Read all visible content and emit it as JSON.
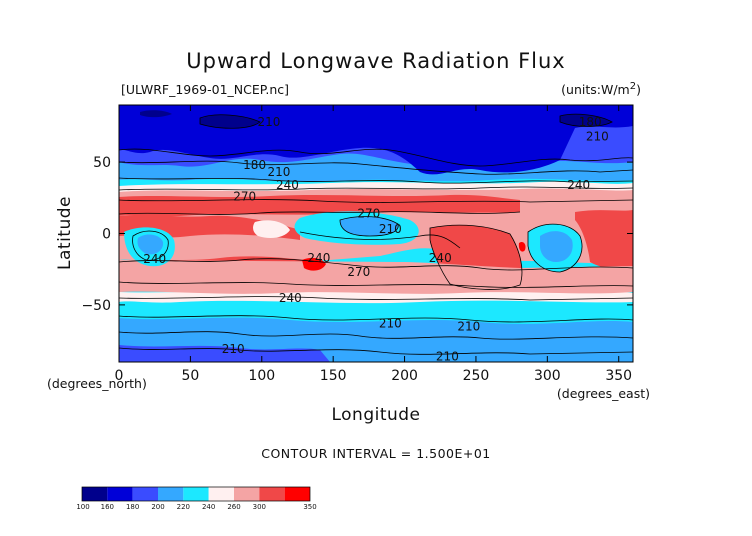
{
  "header": {
    "title": "Upward Longwave Radiation Flux",
    "source": "[ULWRF_1969-01_NCEP.nc]",
    "units": "(units:W/m^2)"
  },
  "chart_data": {
    "type": "heatmap",
    "title": "Upward Longwave Radiation Flux",
    "xlabel": "Longitude",
    "ylabel": "Latitude",
    "x_unit_label": "(degrees_east)",
    "y_unit_label": "(degrees_north)",
    "xlim": [
      0,
      360
    ],
    "ylim": [
      -90,
      90
    ],
    "x_ticks": [
      0,
      50,
      100,
      150,
      200,
      250,
      300,
      350
    ],
    "x_tick_labels": [
      "0",
      "50",
      "100",
      "150",
      "200",
      "250",
      "300",
      "350"
    ],
    "y_ticks": [
      50,
      0,
      -50
    ],
    "y_tick_labels": [
      "50",
      "0",
      "−50"
    ],
    "contour_interval_text": "CONTOUR INTERVAL = 1.500E+01",
    "contour_interval": 15,
    "contour_labels": [
      {
        "text": "210",
        "lon": 105,
        "lat": 78
      },
      {
        "text": "180",
        "lon": 330,
        "lat": 78
      },
      {
        "text": "210",
        "lon": 335,
        "lat": 68
      },
      {
        "text": "180",
        "lon": 95,
        "lat": 48
      },
      {
        "text": "210",
        "lon": 112,
        "lat": 43
      },
      {
        "text": "240",
        "lon": 118,
        "lat": 34
      },
      {
        "text": "240",
        "lon": 322,
        "lat": 34
      },
      {
        "text": "270",
        "lon": 88,
        "lat": 26
      },
      {
        "text": "270",
        "lon": 175,
        "lat": 14
      },
      {
        "text": "210",
        "lon": 190,
        "lat": 3
      },
      {
        "text": "240",
        "lon": 25,
        "lat": -18
      },
      {
        "text": "240",
        "lon": 140,
        "lat": -17
      },
      {
        "text": "270",
        "lon": 168,
        "lat": -27
      },
      {
        "text": "240",
        "lon": 225,
        "lat": -17
      },
      {
        "text": "240",
        "lon": 120,
        "lat": -45
      },
      {
        "text": "210",
        "lon": 190,
        "lat": -63
      },
      {
        "text": "210",
        "lon": 245,
        "lat": -65
      },
      {
        "text": "210",
        "lon": 80,
        "lat": -81
      },
      {
        "text": "210",
        "lon": 230,
        "lat": -86
      }
    ],
    "colorbar": {
      "levels": [
        "100",
        "160",
        "180",
        "200",
        "220",
        "240",
        "260",
        "300",
        "350"
      ],
      "colors": [
        "#00008c",
        "#0000d8",
        "#3a4cff",
        "#34a8ff",
        "#1ce8ff",
        "#fff0f0",
        "#f4a4a4",
        "#f04848",
        "#ff0000"
      ]
    }
  }
}
